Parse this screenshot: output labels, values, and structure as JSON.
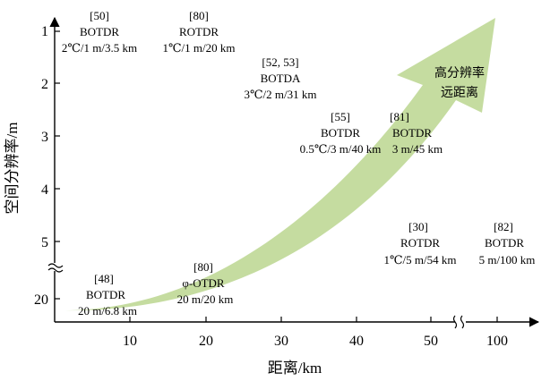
{
  "chart_data": {
    "type": "scatter",
    "xlabel": "距离/km",
    "ylabel": "空间分辨率/m",
    "x_ticks": [
      "10",
      "20",
      "30",
      "40",
      "50",
      "100"
    ],
    "y_ticks": [
      "1",
      "2",
      "3",
      "4",
      "5",
      "20"
    ],
    "x_axis_break": "between 50 and 100",
    "y_axis_break": "between 5 and 20",
    "y_inverted": true,
    "grid": false,
    "arrow_label": [
      "高分辨率",
      "远距离"
    ],
    "arrow_color": "#c5dca0",
    "annotations": [
      {
        "ref": "[50]",
        "method": "BOTDR",
        "spec": "2℃/1 m/3.5 km",
        "distance_km": 3.5,
        "resolution_m": 1
      },
      {
        "ref": "[80]",
        "method": "ROTDR",
        "spec": "1℃/1 m/20 km",
        "distance_km": 20,
        "resolution_m": 1
      },
      {
        "ref": "[52, 53]",
        "method": "BOTDA",
        "spec": "3℃/2 m/31 km",
        "distance_km": 31,
        "resolution_m": 2
      },
      {
        "ref": "[55]",
        "method": "BOTDR",
        "spec": "0.5℃/3 m/40 km",
        "distance_km": 40,
        "resolution_m": 3
      },
      {
        "ref": "[81]",
        "method": "BOTDR",
        "spec": "3 m/45 km",
        "distance_km": 45,
        "resolution_m": 3
      },
      {
        "ref": "[30]",
        "method": "ROTDR",
        "spec": "1℃/5 m/54 km",
        "distance_km": 54,
        "resolution_m": 5
      },
      {
        "ref": "[82]",
        "method": "BOTDR",
        "spec": "5 m/100 km",
        "distance_km": 100,
        "resolution_m": 5
      },
      {
        "ref": "[48]",
        "method": "BOTDR",
        "spec": "20 m/6.8 km",
        "distance_km": 6.8,
        "resolution_m": 20
      },
      {
        "ref": "[80]",
        "method": "φ-OTDR",
        "spec": "20 m/20 km",
        "distance_km": 20,
        "resolution_m": 20
      }
    ]
  }
}
